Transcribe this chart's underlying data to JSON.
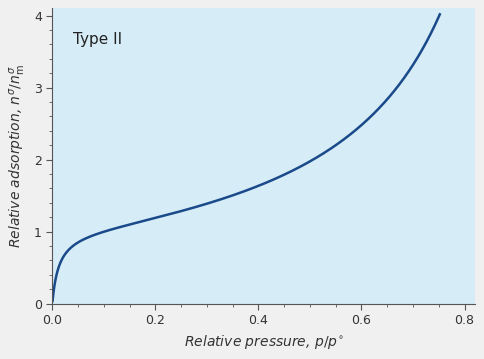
{
  "title": "Type II",
  "xlabel": "Relative pressure, $p/p^{\\circ}$",
  "ylabel": "Relative adsorption, $n^{\\sigma}/n^{\\sigma}_{\\mathrm{m}}$",
  "xlim": [
    0.0,
    0.82
  ],
  "ylim": [
    0.0,
    4.1
  ],
  "xticks": [
    0.0,
    0.2,
    0.4,
    0.6,
    0.8
  ],
  "yticks": [
    0,
    1,
    2,
    3,
    4
  ],
  "xtick_labels": [
    "0.0",
    "0.2",
    "0.4",
    "0.6",
    "0.8"
  ],
  "ytick_labels": [
    "0",
    "1",
    "2",
    "3",
    "4"
  ],
  "line_color": "#1a4a8a",
  "line_width": 1.8,
  "bg_color": "#d6ecf7",
  "fig_bg_color": "#f0f0f0",
  "title_fontsize": 11,
  "label_fontsize": 10,
  "tick_fontsize": 9,
  "bet_C": 80
}
